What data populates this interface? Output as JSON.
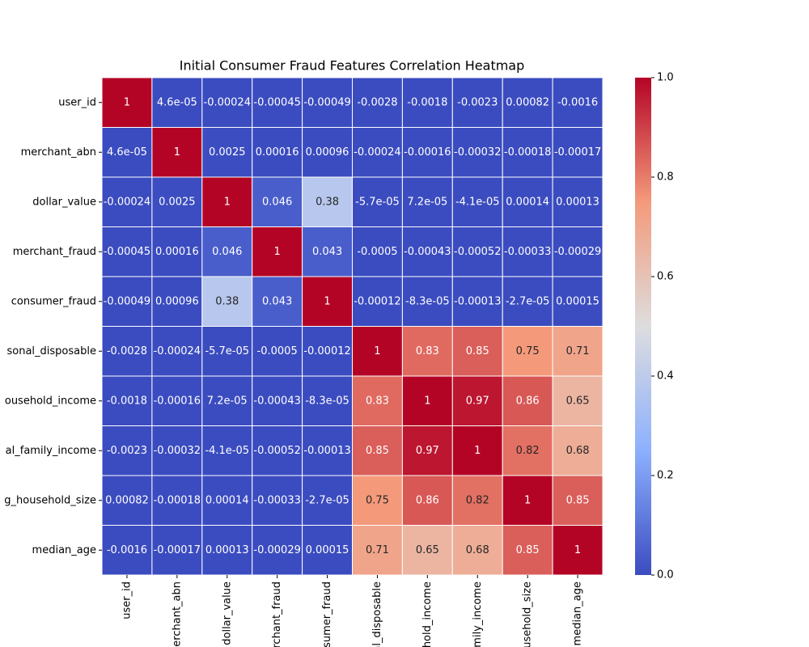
{
  "chart_data": {
    "type": "heatmap",
    "title": "Initial Consumer Fraud Features Correlation Heatmap",
    "categories": [
      "user_id",
      "merchant_abn",
      "dollar_value",
      "merchant_fraud",
      "consumer_fraud",
      "sonal_disposable",
      "ousehold_income",
      "al_family_income",
      "g_household_size",
      "median_age"
    ],
    "values": [
      [
        1,
        4.6e-05,
        -0.00024,
        -0.00045,
        -0.00049,
        -0.0028,
        -0.0018,
        -0.0023,
        0.00082,
        -0.0016
      ],
      [
        4.6e-05,
        1,
        0.0025,
        0.00016,
        0.00096,
        -0.00024,
        -0.00016,
        -0.00032,
        -0.00018,
        -0.00017
      ],
      [
        -0.00024,
        0.0025,
        1,
        0.046,
        0.38,
        -5.7e-05,
        7.2e-05,
        -4.1e-05,
        0.00014,
        0.00013
      ],
      [
        -0.00045,
        0.00016,
        0.046,
        1,
        0.043,
        -0.0005,
        -0.00043,
        -0.00052,
        -0.00033,
        -0.00029
      ],
      [
        -0.00049,
        0.00096,
        0.38,
        0.043,
        1,
        -0.00012,
        -8.3e-05,
        -0.00013,
        -2.7e-05,
        0.00015
      ],
      [
        -0.0028,
        -0.00024,
        -5.7e-05,
        -0.0005,
        -0.00012,
        1,
        0.83,
        0.85,
        0.75,
        0.71
      ],
      [
        -0.0018,
        -0.00016,
        7.2e-05,
        -0.00043,
        -8.3e-05,
        0.83,
        1,
        0.97,
        0.86,
        0.65
      ],
      [
        -0.0023,
        -0.00032,
        -4.1e-05,
        -0.00052,
        -0.00013,
        0.85,
        0.97,
        1,
        0.82,
        0.68
      ],
      [
        0.00082,
        -0.00018,
        0.00014,
        -0.00033,
        -2.7e-05,
        0.75,
        0.86,
        0.82,
        1,
        0.85
      ],
      [
        -0.0016,
        -0.00017,
        0.00013,
        -0.00029,
        0.00015,
        0.71,
        0.65,
        0.68,
        0.85,
        1
      ]
    ],
    "value_labels": [
      [
        "1",
        "4.6e-05",
        "-0.00024",
        "-0.00045",
        "-0.00049",
        "-0.0028",
        "-0.0018",
        "-0.0023",
        "0.00082",
        "-0.0016"
      ],
      [
        "4.6e-05",
        "1",
        "0.0025",
        "0.00016",
        "0.00096",
        "-0.00024",
        "-0.00016",
        "-0.00032",
        "-0.00018",
        "-0.00017"
      ],
      [
        "-0.00024",
        "0.0025",
        "1",
        "0.046",
        "0.38",
        "-5.7e-05",
        "7.2e-05",
        "-4.1e-05",
        "0.00014",
        "0.00013"
      ],
      [
        "-0.00045",
        "0.00016",
        "0.046",
        "1",
        "0.043",
        "-0.0005",
        "-0.00043",
        "-0.00052",
        "-0.00033",
        "-0.00029"
      ],
      [
        "-0.00049",
        "0.00096",
        "0.38",
        "0.043",
        "1",
        "-0.00012",
        "-8.3e-05",
        "-0.00013",
        "-2.7e-05",
        "0.00015"
      ],
      [
        "-0.0028",
        "-0.00024",
        "-5.7e-05",
        "-0.0005",
        "-0.00012",
        "1",
        "0.83",
        "0.85",
        "0.75",
        "0.71"
      ],
      [
        "-0.0018",
        "-0.00016",
        "7.2e-05",
        "-0.00043",
        "-8.3e-05",
        "0.83",
        "1",
        "0.97",
        "0.86",
        "0.65"
      ],
      [
        "-0.0023",
        "-0.00032",
        "-4.1e-05",
        "-0.00052",
        "-0.00013",
        "0.85",
        "0.97",
        "1",
        "0.82",
        "0.68"
      ],
      [
        "0.00082",
        "-0.00018",
        "0.00014",
        "-0.00033",
        "-2.7e-05",
        "0.75",
        "0.86",
        "0.82",
        "1",
        "0.85"
      ],
      [
        "-0.0016",
        "-0.00017",
        "0.00013",
        "-0.00029",
        "0.00015",
        "0.71",
        "0.65",
        "0.68",
        "0.85",
        "1"
      ]
    ],
    "zlim": [
      0,
      1
    ],
    "zticks": [
      {
        "value": 0,
        "label": "0.0"
      },
      {
        "value": 0.2,
        "label": "0.2"
      },
      {
        "value": 0.4,
        "label": "0.4"
      },
      {
        "value": 0.6,
        "label": "0.6"
      },
      {
        "value": 0.8,
        "label": "0.8"
      },
      {
        "value": 1,
        "label": "1.0"
      }
    ],
    "colormap": [
      "#3b4cc0",
      "#8db0fe",
      "#dddddd",
      "#f49a7b",
      "#b40426"
    ]
  }
}
